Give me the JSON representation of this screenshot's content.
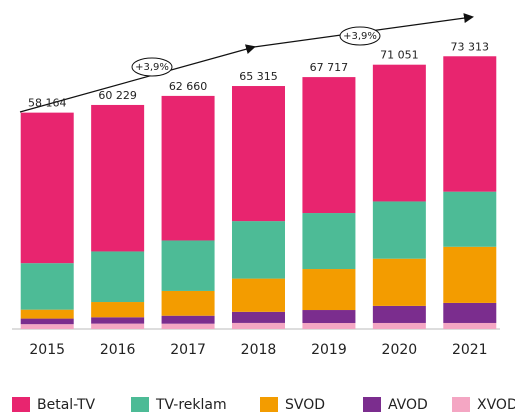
{
  "chart_data": {
    "type": "stacked_bar",
    "categories": [
      "2015",
      "2016",
      "2017",
      "2018",
      "2019",
      "2020",
      "2021"
    ],
    "series": [
      {
        "name": "XVOD",
        "color": "#f4a6c3",
        "values": [
          1300,
          1450,
          1430,
          1630,
          1610,
          1620,
          1620
        ]
      },
      {
        "name": "AVOD",
        "color": "#7b2d8e",
        "values": [
          1500,
          1700,
          2140,
          2980,
          3490,
          4590,
          5390
        ]
      },
      {
        "name": "SVOD",
        "color": "#f39c00",
        "values": [
          2400,
          4100,
          6660,
          8940,
          11020,
          12690,
          15090
        ]
      },
      {
        "name": "TV-reklam",
        "color": "#4dbb96",
        "values": [
          12500,
          13600,
          13570,
          15450,
          15050,
          15390,
          14820
        ]
      },
      {
        "name": "Betal-TV",
        "color": "#e8256f",
        "values": [
          40464,
          39379,
          38860,
          36315,
          36547,
          36761,
          36393
        ]
      }
    ],
    "totals": [
      58164,
      60229,
      62660,
      65315,
      67717,
      71051,
      73313
    ],
    "total_labels": [
      "58 164",
      "60 229",
      "62 660",
      "65 315",
      "67 717",
      "71 051",
      "73 313"
    ],
    "annotations": [
      "+3,9%",
      "+3,9%"
    ],
    "ylim": [
      0,
      75000
    ]
  }
}
